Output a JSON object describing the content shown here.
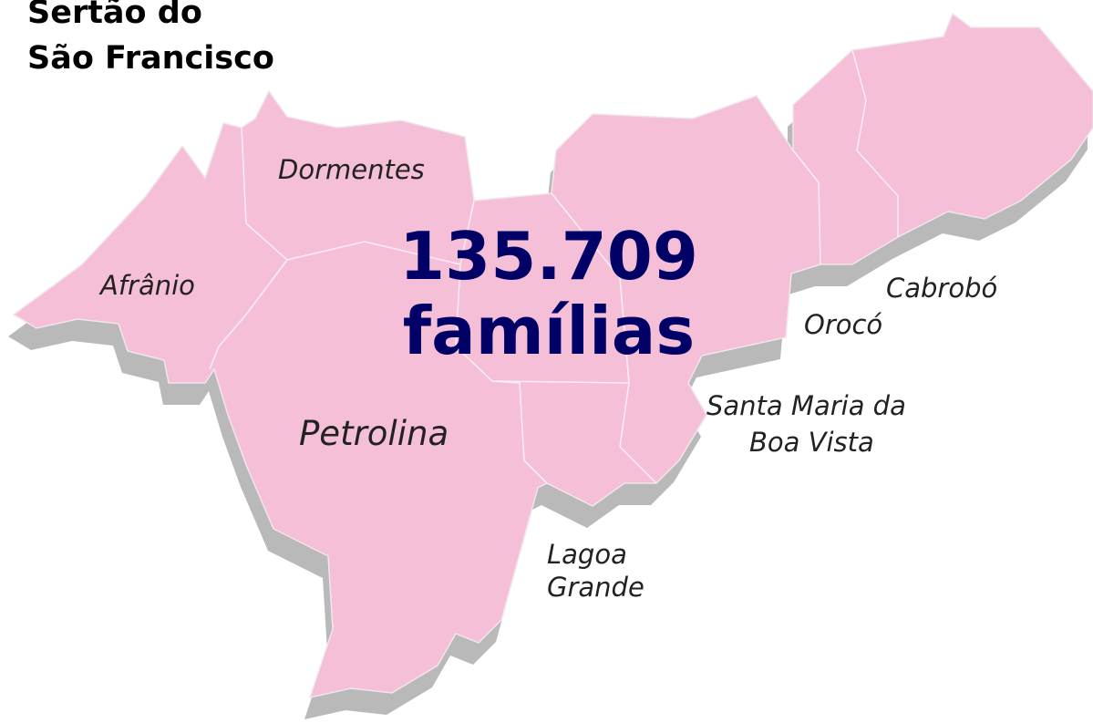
{
  "title": [
    "Sertão do",
    "São Francisco"
  ],
  "total": {
    "value": "135.709",
    "unit": "famílias"
  },
  "municipalities": {
    "afranio": "Afrânio",
    "dormentes": "Dormentes",
    "petrolina": "Petrolina",
    "lagoa_grande": [
      "Lagoa",
      "Grande"
    ],
    "santa_maria": [
      "Santa Maria da",
      "Boa Vista"
    ],
    "oroco": "Orocó",
    "cabrobo": "Cabrobó"
  }
}
